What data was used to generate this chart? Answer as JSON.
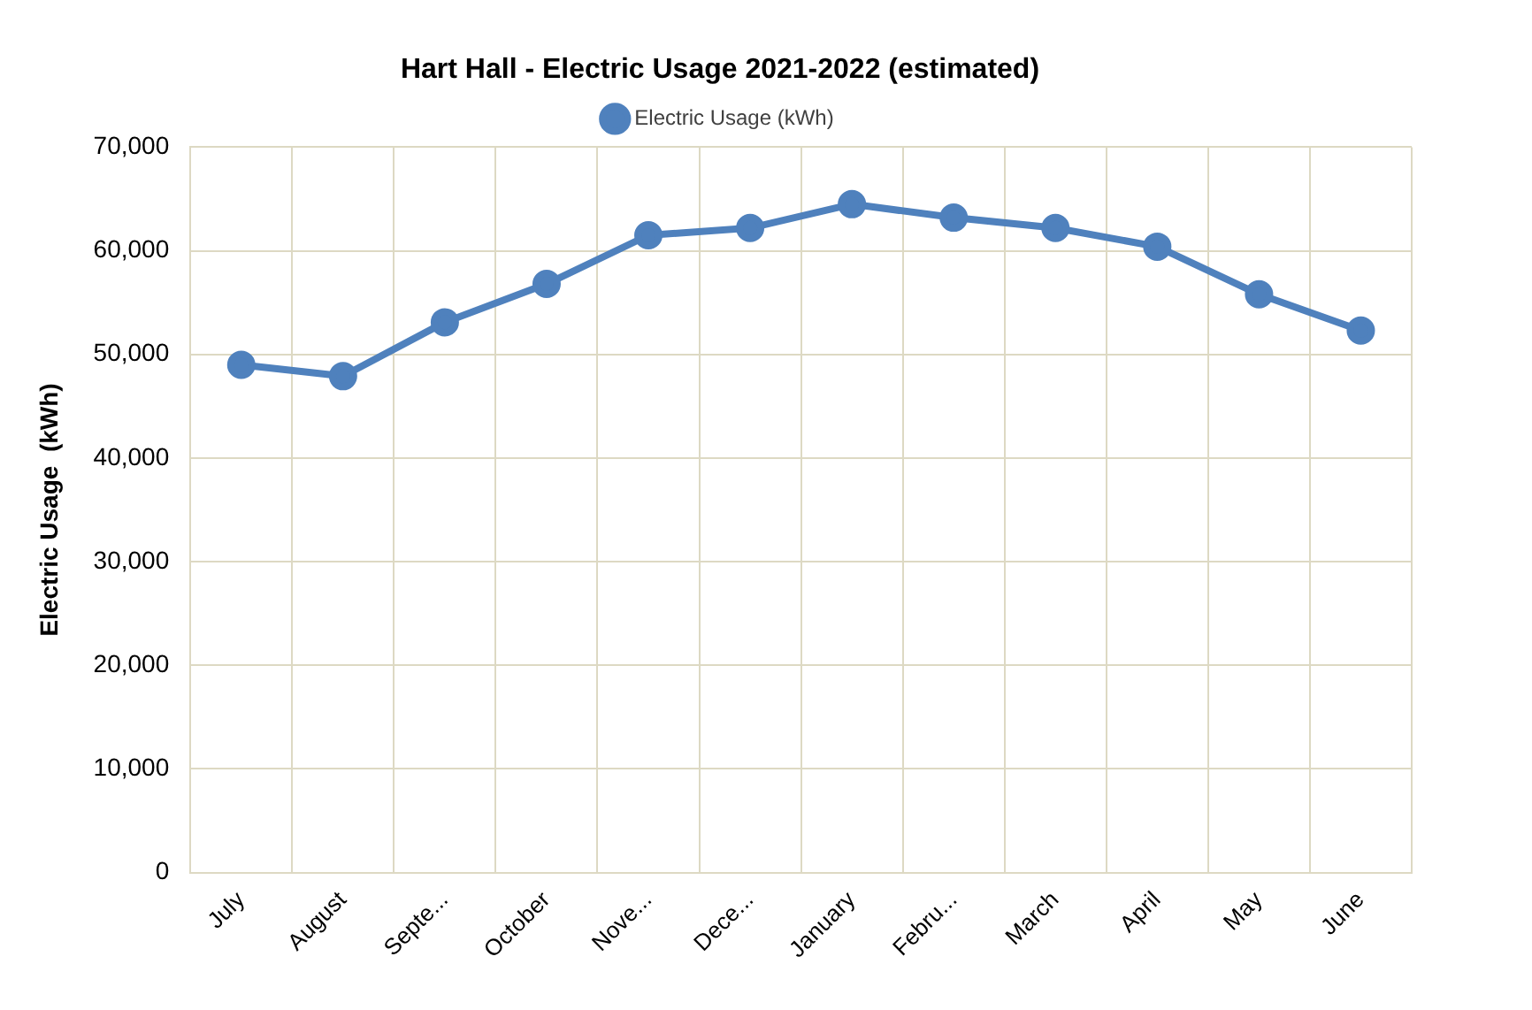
{
  "chart_data": {
    "type": "line",
    "title": "Hart Hall - Electric Usage 2021-2022 (estimated)",
    "ylabel": "Electric Usage  (kWh)",
    "categories": [
      "July",
      "August",
      "Septe...",
      "October",
      "Nove...",
      "Dece...",
      "January",
      "Febru...",
      "March",
      "April",
      "May",
      "June"
    ],
    "series": [
      {
        "name": "Electric Usage (kWh)",
        "color": "#4f81bd",
        "values": [
          49000,
          47900,
          53100,
          56800,
          61500,
          62200,
          64500,
          63200,
          62200,
          60400,
          55800,
          52300
        ]
      }
    ],
    "ylim": [
      0,
      70000
    ],
    "yticks": [
      {
        "value": 0,
        "label": "0"
      },
      {
        "value": 10000,
        "label": "10,000"
      },
      {
        "value": 20000,
        "label": "20,000"
      },
      {
        "value": 30000,
        "label": "30,000"
      },
      {
        "value": 40000,
        "label": "40,000"
      },
      {
        "value": 50000,
        "label": "50,000"
      },
      {
        "value": 60000,
        "label": "60,000"
      },
      {
        "value": 70000,
        "label": "70,000"
      }
    ],
    "grid": true,
    "legend": "top",
    "marker": "circle",
    "line_style": "solid"
  }
}
